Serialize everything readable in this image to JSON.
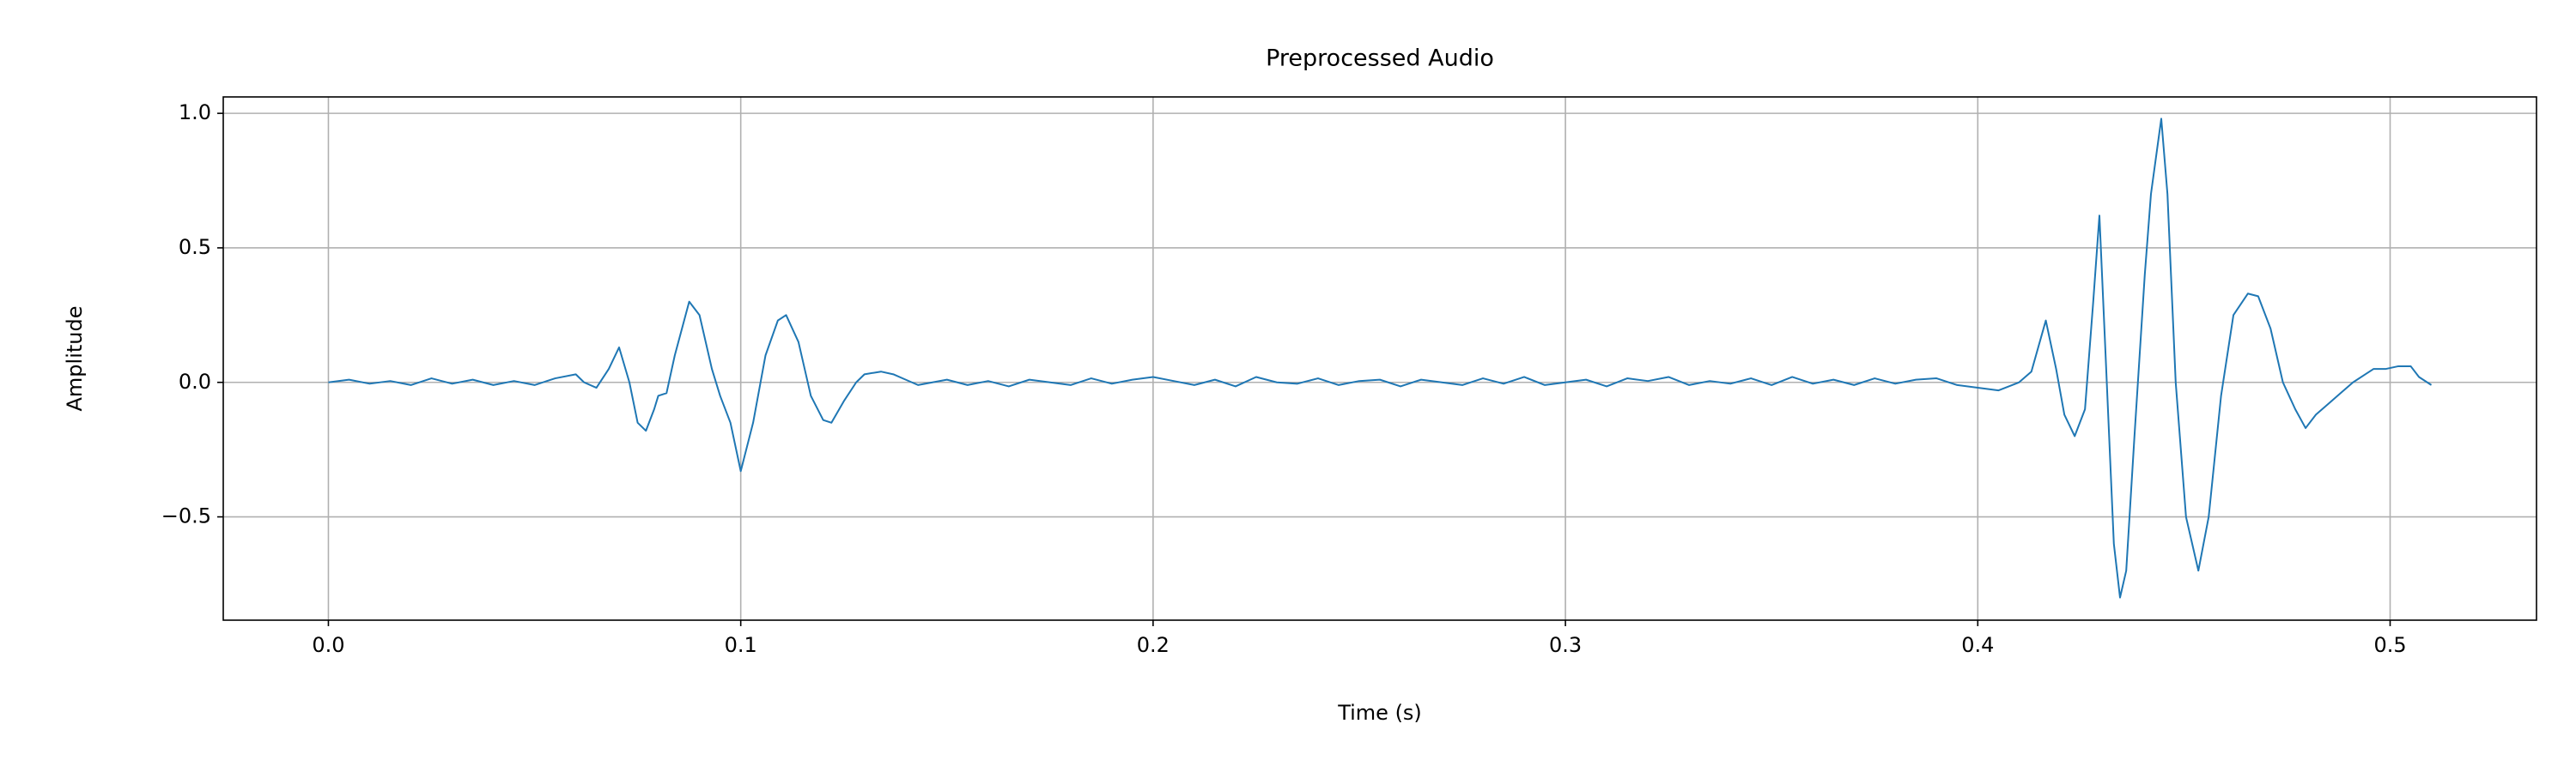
{
  "chart_data": {
    "type": "line",
    "title": "Preprocessed Audio",
    "x_label": "Time (s)",
    "y_label": "Amplitude",
    "x": [
      0,
      0.005,
      0.01,
      0.015,
      0.02,
      0.025,
      0.03,
      0.035,
      0.04,
      0.045,
      0.05,
      0.055,
      0.06,
      0.062,
      0.065,
      0.068,
      0.0705,
      0.073,
      0.075,
      0.077,
      0.079,
      0.08,
      0.082,
      0.084,
      0.0875,
      0.09,
      0.093,
      0.095,
      0.0975,
      0.1,
      0.103,
      0.106,
      0.109,
      0.111,
      0.114,
      0.117,
      0.12,
      0.122,
      0.125,
      0.128,
      0.13,
      0.134,
      0.137,
      0.14,
      0.143,
      0.15,
      0.155,
      0.16,
      0.165,
      0.17,
      0.175,
      0.18,
      0.185,
      0.19,
      0.195,
      0.2,
      0.205,
      0.21,
      0.215,
      0.22,
      0.225,
      0.23,
      0.235,
      0.24,
      0.245,
      0.25,
      0.255,
      0.26,
      0.265,
      0.27,
      0.275,
      0.28,
      0.285,
      0.29,
      0.295,
      0.3,
      0.305,
      0.31,
      0.315,
      0.32,
      0.325,
      0.33,
      0.335,
      0.34,
      0.345,
      0.35,
      0.355,
      0.36,
      0.365,
      0.37,
      0.375,
      0.38,
      0.385,
      0.39,
      0.395,
      0.4,
      0.405,
      0.41,
      0.413,
      0.4165,
      0.419,
      0.421,
      0.4235,
      0.426,
      0.428,
      0.4295,
      0.431,
      0.433,
      0.4345,
      0.436,
      0.438,
      0.4405,
      0.442,
      0.4445,
      0.446,
      0.448,
      0.4505,
      0.4535,
      0.456,
      0.459,
      0.462,
      0.4655,
      0.468,
      0.471,
      0.474,
      0.477,
      0.4795,
      0.482,
      0.485,
      0.488,
      0.491,
      0.494,
      0.496,
      0.499,
      0.502,
      0.505,
      0.507,
      0.51
    ],
    "series": [
      {
        "name": "Preprocessed Audio",
        "color": "#1f77b4",
        "values": [
          0,
          0.01,
          -0.005,
          0.005,
          -0.01,
          0.015,
          -0.005,
          0.01,
          -0.01,
          0.005,
          -0.01,
          0.015,
          0.03,
          0.0,
          -0.02,
          0.05,
          0.13,
          0.0,
          -0.15,
          -0.18,
          -0.1,
          -0.05,
          -0.04,
          0.1,
          0.3,
          0.25,
          0.05,
          -0.05,
          -0.15,
          -0.33,
          -0.15,
          0.1,
          0.23,
          0.25,
          0.15,
          -0.05,
          -0.14,
          -0.15,
          -0.07,
          0.0,
          0.03,
          0.04,
          0.03,
          0.01,
          -0.01,
          0.01,
          -0.01,
          0.005,
          -0.015,
          0.01,
          0.0,
          -0.01,
          0.015,
          -0.005,
          0.01,
          0.02,
          0.005,
          -0.01,
          0.01,
          -0.015,
          0.02,
          0.0,
          -0.005,
          0.015,
          -0.01,
          0.005,
          0.01,
          -0.015,
          0.01,
          0.0,
          -0.01,
          0.015,
          -0.005,
          0.02,
          -0.01,
          0.0,
          0.01,
          -0.015,
          0.015,
          0.005,
          0.02,
          -0.01,
          0.005,
          -0.005,
          0.015,
          -0.01,
          0.02,
          -0.005,
          0.01,
          -0.01,
          0.015,
          -0.005,
          0.01,
          0.015,
          -0.01,
          -0.02,
          -0.03,
          0.0,
          0.04,
          0.23,
          0.05,
          -0.12,
          -0.2,
          -0.1,
          0.3,
          0.62,
          0.1,
          -0.6,
          -0.8,
          -0.7,
          -0.2,
          0.4,
          0.7,
          0.98,
          0.7,
          0.0,
          -0.5,
          -0.7,
          -0.5,
          -0.05,
          0.25,
          0.33,
          0.32,
          0.2,
          0.0,
          -0.1,
          -0.17,
          -0.12,
          -0.08,
          -0.04,
          0.0,
          0.03,
          0.05,
          0.05,
          0.06,
          0.06,
          0.02,
          -0.01
        ]
      }
    ],
    "xlim": [
      -0.0255,
      0.5355
    ],
    "ylim": [
      -0.884,
      1.061
    ],
    "xticks": [
      {
        "value": 0,
        "label": "0.0"
      },
      0.1,
      0.2,
      0.3,
      0.4,
      0.5
    ],
    "yticks": [
      {
        "value": -0.5,
        "label": "−0.5"
      },
      {
        "value": 0,
        "label": "0.0"
      },
      0.5,
      {
        "value": 1,
        "label": "1.0"
      }
    ],
    "grid": true
  }
}
